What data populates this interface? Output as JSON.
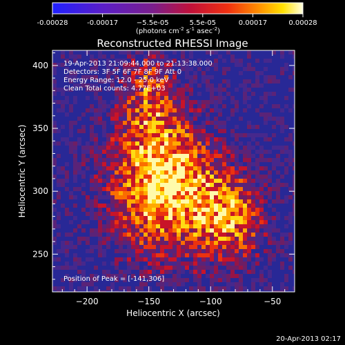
{
  "colorbar": {
    "ticks": [
      "-0.00028",
      "-0.00017",
      "−5.5e-05",
      "5.5e-05",
      "0.00017",
      "0.00028"
    ],
    "units_text": "(photons cm",
    "units_exp1": "-2",
    "units_mid": " s",
    "units_exp2": "-1",
    "units_end": " asec",
    "units_exp3": "-2",
    "units_close": ")"
  },
  "chart_data": {
    "type": "heatmap",
    "title": "Reconstructed RHESSI Image",
    "xlabel": "Heliocentric X (arcsec)",
    "ylabel": "Heliocentric Y (arcsec)",
    "xlim": [
      -228,
      -32
    ],
    "ylim": [
      220,
      412
    ],
    "xticks": [
      -200,
      -150,
      -100,
      -50
    ],
    "yticks": [
      250,
      300,
      350,
      400
    ],
    "color_range": [
      -0.00028,
      0.00028
    ],
    "colormap": "rainbow-heat (blue-purple-red-orange-yellow-white)",
    "peak": [
      -141,
      306
    ]
  },
  "annotations": {
    "time": "19-Apr-2013 21:09:44.000 to 21:13:38.000",
    "detectors": "Detectors: 3F 5F 6F 7F 8F 9F  Att 0",
    "energy": "Energy Range: 12.0 - 25.0 keV",
    "method": "Clean     Total counts: 4.77E+03",
    "peak_text": "Position of Peak = [-141,306]"
  },
  "footer": {
    "date": "20-Apr-2013 02:17"
  }
}
